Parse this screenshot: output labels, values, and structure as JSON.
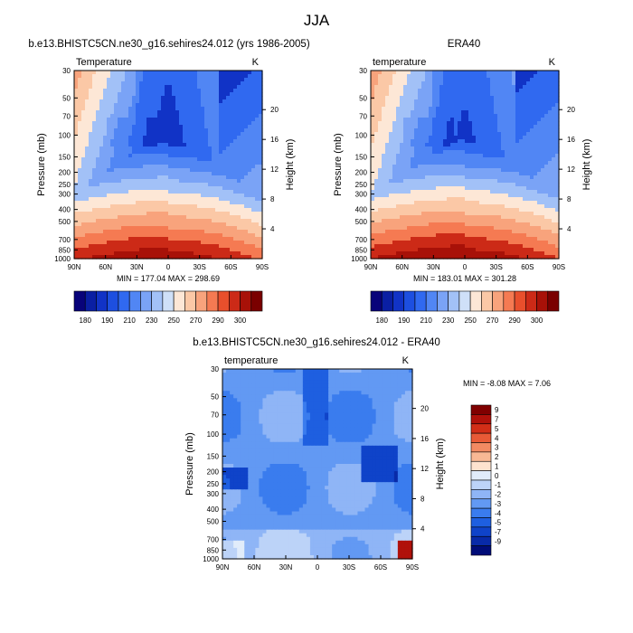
{
  "figure": {
    "title": "JJA"
  },
  "colors": {
    "seq_palette": [
      "#08037a",
      "#0a1fa3",
      "#1133c6",
      "#1d4fe0",
      "#3069f0",
      "#5186f4",
      "#7aa3f6",
      "#a2c1f7",
      "#cfe0f8",
      "#fde7d6",
      "#fbc8a6",
      "#f8a37c",
      "#f57a52",
      "#e84f2c",
      "#cc2a17",
      "#a81108",
      "#7a0000"
    ],
    "diff_palette": [
      "#000c78",
      "#082aa8",
      "#0f43c9",
      "#1e5fe0",
      "#3a7cee",
      "#6299f3",
      "#8fb5f6",
      "#bcd3f8",
      "#e1ecfa",
      "#fde3cf",
      "#f8b894",
      "#f28a62",
      "#e85a36",
      "#d22e17",
      "#b0110a",
      "#800000"
    ]
  },
  "chart_data": [
    {
      "type": "heatmap",
      "panel": "model",
      "header": "b.e13.BHISTC5CN.ne30_g16.sehires24.012 (yrs 1986-2005)",
      "left_label": "Temperature",
      "right_label": "K",
      "xlabel": "",
      "ylabel": "Pressure (mb)",
      "y2label": "Height (km)",
      "x_ticks": [
        "90N",
        "60N",
        "30N",
        "0",
        "30S",
        "60S",
        "90S"
      ],
      "y_ticks": [
        30,
        50,
        70,
        100,
        150,
        200,
        250,
        300,
        400,
        500,
        700,
        850,
        1000
      ],
      "y2_ticks": [
        20,
        16,
        12,
        8,
        4
      ],
      "ylim": [
        1000,
        30
      ],
      "stats": {
        "min": 177.04,
        "max": 298.69,
        "text": "MIN = 177.04  MAX = 298.69"
      },
      "colorbar": {
        "orientation": "horizontal",
        "levels": [
          180,
          190,
          200,
          210,
          220,
          230,
          240,
          250,
          260,
          270,
          280,
          290,
          300
        ],
        "labels": [
          "180",
          "190",
          "210",
          "230",
          "250",
          "270",
          "290",
          "300"
        ]
      }
    },
    {
      "type": "heatmap",
      "panel": "obs",
      "header": "ERA40",
      "left_label": "temperature",
      "right_label": "K",
      "xlabel": "",
      "ylabel": "Pressure (mb)",
      "y2label": "Height (km)",
      "x_ticks": [
        "90N",
        "60N",
        "30N",
        "0",
        "30S",
        "60S",
        "90S"
      ],
      "y_ticks": [
        30,
        50,
        70,
        100,
        150,
        200,
        250,
        300,
        400,
        500,
        700,
        850,
        1000
      ],
      "y2_ticks": [
        20,
        16,
        12,
        8,
        4
      ],
      "ylim": [
        1000,
        30
      ],
      "stats": {
        "min": 183.01,
        "max": 301.28,
        "text": "MIN = 183.01  MAX = 301.28"
      },
      "colorbar": {
        "orientation": "horizontal",
        "levels": [
          180,
          190,
          200,
          210,
          220,
          230,
          240,
          250,
          260,
          270,
          280,
          290,
          300
        ],
        "labels": [
          "180",
          "190",
          "210",
          "230",
          "250",
          "270",
          "290",
          "300"
        ]
      }
    },
    {
      "type": "heatmap",
      "panel": "difference",
      "header": "b.e13.BHISTC5CN.ne30_g16.sehires24.012 - ERA40",
      "left_label": "temperature",
      "right_label": "K",
      "xlabel": "",
      "ylabel": "Pressure (mb)",
      "y2label": "Height (km)",
      "x_ticks": [
        "90N",
        "60N",
        "30N",
        "0",
        "30S",
        "60S",
        "90S"
      ],
      "y_ticks": [
        30,
        50,
        70,
        100,
        150,
        200,
        250,
        300,
        400,
        500,
        700,
        850,
        1000
      ],
      "y2_ticks": [
        20,
        16,
        12,
        8,
        4
      ],
      "ylim": [
        1000,
        30
      ],
      "stats": {
        "min": -8.08,
        "max": 7.06,
        "text": "MIN =  -8.08  MAX =   7.06"
      },
      "colorbar": {
        "orientation": "vertical",
        "labels": [
          "9",
          "7",
          "5",
          "4",
          "3",
          "2",
          "1",
          "0",
          "-1",
          "-2",
          "-3",
          "-4",
          "-5",
          "-7",
          "-9"
        ]
      }
    }
  ]
}
